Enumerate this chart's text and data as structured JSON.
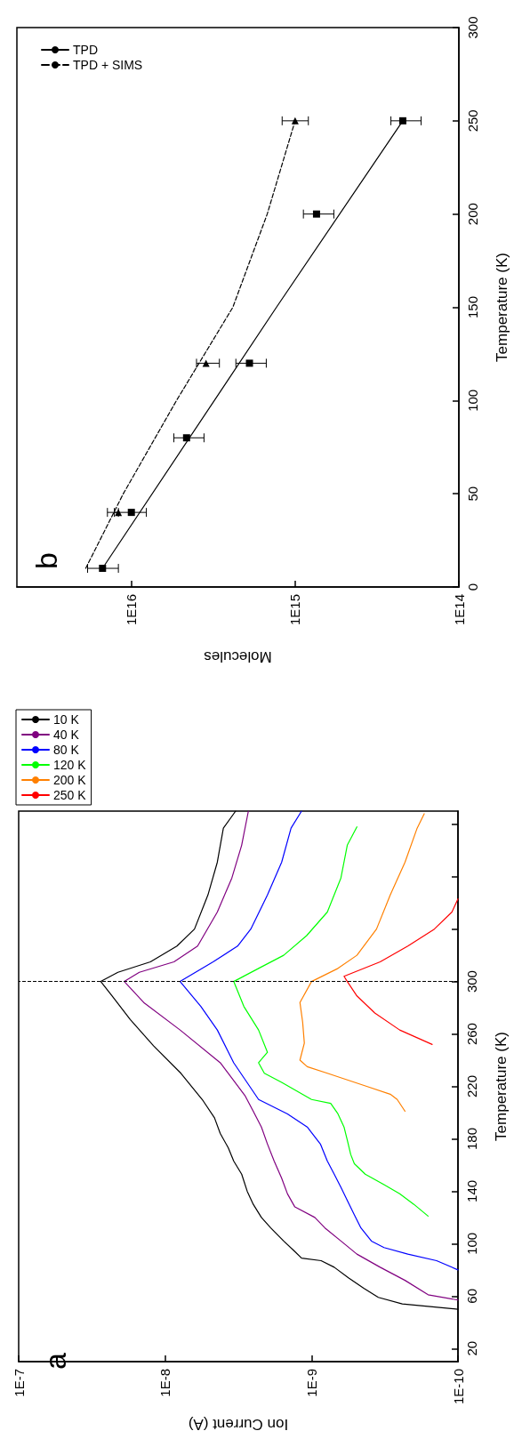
{
  "chart_data": [
    {
      "type": "line",
      "xlabel": "Ion Current (A)",
      "ylabel": "Temperature (K)",
      "annotations": [
        "a"
      ],
      "log": "x",
      "legend": "top left",
      "marker": "none",
      "line_style": "solid",
      "ylim": [
        10,
        430
      ],
      "yticks": [
        20,
        60,
        100,
        140,
        180,
        220,
        260,
        300,
        {
          "value": 340,
          "label": null
        },
        {
          "value": 380,
          "label": null
        },
        {
          "value": 420,
          "label": null
        }
      ],
      "xlim": [
        1e-07,
        1e-10
      ],
      "xticks": [
        {
          "value": 1e-07,
          "label": "1E-7"
        },
        {
          "value": 1e-08,
          "label": "1E-8"
        },
        {
          "value": 1e-09,
          "label": "1E-9"
        },
        {
          "value": 1e-10,
          "label": "1E-10"
        }
      ],
      "ref_lines": [
        {
          "axis": "y",
          "value": 300,
          "color": "#000000",
          "line_style": "dashed"
        }
      ],
      "series": [
        {
          "name": "10 K",
          "color": "#000000",
          "values": [
            50,
            54,
            59,
            66,
            74,
            82,
            87,
            89,
            94,
            102,
            112,
            120,
            130,
            140,
            153,
            163,
            173,
            184,
            196,
            209,
            230,
            251,
            271,
            289,
            300,
            307,
            315,
            327,
            340,
            366,
            391,
            417,
            430
          ],
          "x": [
            1e-10,
            2.4e-10,
            3.5e-10,
            4.4e-10,
            5.6e-10,
            7e-10,
            8.6e-10,
            1.17e-09,
            1.3e-09,
            1.55e-09,
            1.9e-09,
            2.2e-09,
            2.5e-09,
            2.75e-09,
            3e-09,
            3.4e-09,
            3.7e-09,
            4.2e-09,
            4.6e-09,
            5.5e-09,
            7.8e-09,
            1.2e-08,
            1.73e-08,
            2.3e-08,
            2.75e-08,
            2.1e-08,
            1.26e-08,
            8.3e-09,
            6.3e-09,
            5.1e-09,
            4.4e-09,
            4e-09,
            3.3e-09
          ]
        },
        {
          "name": "40 K",
          "color": "#800080",
          "values": [
            57,
            61,
            72,
            82,
            92,
            102,
            112,
            120,
            128,
            138,
            150,
            163,
            176,
            189,
            201,
            213,
            238,
            263,
            284,
            300,
            307,
            315,
            327,
            353,
            379,
            404,
            430
          ],
          "x": [
            1e-10,
            1.6e-10,
            2.3e-10,
            3.4e-10,
            4.9e-10,
            6.3e-10,
            8.1e-10,
            9.5e-10,
            1.3e-09,
            1.46e-09,
            1.6e-09,
            1.8e-09,
            2e-09,
            2.2e-09,
            2.5e-09,
            2.85e-09,
            4.2e-09,
            7.9e-09,
            1.4e-08,
            1.9e-08,
            1.5e-08,
            8.7e-09,
            6e-09,
            4.4e-09,
            3.5e-09,
            3e-09,
            2.7e-09
          ]
        },
        {
          "name": "80 K",
          "color": "#0000ff",
          "values": [
            80,
            87,
            92,
            97,
            102,
            112,
            122,
            133,
            143,
            153,
            163,
            176,
            189,
            199,
            210,
            238,
            263,
            281,
            300,
            315,
            327,
            340,
            366,
            391,
            417,
            430
          ],
          "x": [
            1e-10,
            1.4e-10,
            2.2e-10,
            3.2e-10,
            3.9e-10,
            4.6e-10,
            5.1e-10,
            5.7e-10,
            6.3e-10,
            7e-10,
            7.8e-10,
            8.7e-10,
            1.07e-09,
            1.46e-09,
            2.3e-09,
            3.4e-09,
            4.4e-09,
            5.7e-09,
            7.9e-09,
            4.7e-09,
            3.2e-09,
            2.6e-09,
            2e-09,
            1.6e-09,
            1.38e-09,
            1.17e-09
          ]
        },
        {
          "name": "120 K",
          "color": "#00ff00",
          "values": [
            121,
            130,
            138,
            145,
            153,
            161,
            168,
            179,
            189,
            199,
            207,
            210,
            223,
            230,
            238,
            246,
            263,
            281,
            300,
            310,
            320,
            335,
            353,
            379,
            404,
            418
          ],
          "x": [
            1.6e-10,
            2e-10,
            2.5e-10,
            3.2e-10,
            4.3e-10,
            5.1e-10,
            5.4e-10,
            5.7e-10,
            6e-10,
            6.6e-10,
            7.4e-10,
            1e-09,
            1.6e-09,
            2.1e-09,
            2.3e-09,
            2e-09,
            2.3e-09,
            2.9e-09,
            3.4e-09,
            2.3e-09,
            1.55e-09,
            1.08e-09,
            7.8e-10,
            6.3e-10,
            5.7e-10,
            4.9e-10
          ]
        },
        {
          "name": "200 K",
          "color": "#ff8000",
          "values": [
            201,
            210,
            214,
            220,
            230,
            235,
            240,
            253,
            269,
            284,
            300,
            310,
            320,
            340,
            366,
            391,
            417,
            428
          ],
          "x": [
            2.3e-10,
            2.6e-10,
            2.9e-10,
            4.2e-10,
            7.8e-10,
            1.07e-09,
            1.2e-09,
            1.12e-09,
            1.15e-09,
            1.2e-09,
            1e-09,
            6.6e-10,
            4.9e-10,
            3.6e-10,
            2.9e-10,
            2.3e-10,
            1.9e-10,
            1.7e-10
          ]
        },
        {
          "name": "250 K",
          "color": "#ff0000",
          "values": [
            252,
            263,
            276,
            289,
            300,
            304,
            315,
            327,
            340,
            353,
            363
          ],
          "x": [
            1.5e-10,
            2.5e-10,
            3.7e-10,
            4.9e-10,
            5.7e-10,
            6e-10,
            3.4e-10,
            2.2e-10,
            1.45e-10,
            1.1e-10,
            1e-10
          ]
        }
      ]
    },
    {
      "type": "scatter",
      "xlabel": "Molecules",
      "ylabel": "Temperature (K)",
      "annotations": [
        "b"
      ],
      "log": "x",
      "legend": "top left",
      "ylim": [
        0,
        300
      ],
      "yticks": [
        0,
        50,
        100,
        150,
        200,
        250,
        300
      ],
      "xlim": [
        5e+16,
        100000000000000.0
      ],
      "xticks": [
        {
          "value": 1e+16,
          "label": "1E16"
        },
        {
          "value": 1000000000000000.0,
          "label": "1E15"
        },
        {
          "value": 100000000000000.0,
          "label": "1E14"
        }
      ],
      "series": [
        {
          "color": "#000000",
          "marker": "square",
          "values": [
            10,
            40,
            80,
            120,
            200,
            250
          ],
          "x": [
            1.5e+16,
            1e+16,
            4600000000000000.0,
            1900000000000000.0,
            740000000000000.0,
            220000000000000.0
          ],
          "xerrors": [
            [
              1.2e+16,
              1.85e+16
            ],
            [
              8100000000000000.0,
              1.27e+16
            ],
            [
              3600000000000000.0,
              5500000000000000.0
            ],
            [
              1500000000000000.0,
              2300000000000000.0
            ],
            [
              580000000000000.0,
              890000000000000.0
            ],
            [
              170000000000000.0,
              260000000000000.0
            ]
          ]
        },
        {
          "color": "#000000",
          "marker": "triangle",
          "values": [
            40,
            120,
            250
          ],
          "x": [
            1.2e+16,
            3500000000000000.0,
            1000000000000000.0
          ],
          "xerrors": [
            [
              1.2e+16,
              1.4e+16
            ],
            [
              2900000000000000.0,
              4000000000000000.0
            ],
            [
              830000000000000.0,
              1200000000000000.0
            ]
          ]
        },
        {
          "type": "line",
          "name": "TPD",
          "color": "#000000",
          "marker": "none",
          "line_style": "solid",
          "values": [
            10,
            150,
            250
          ],
          "x": [
            1.5e+16,
            1300000000000000.0,
            220000000000000.0
          ]
        },
        {
          "type": "line",
          "name": "TPD + SIMS",
          "color": "#000000",
          "marker": "none",
          "line_style": "dashed",
          "values": [
            10,
            50,
            100,
            150,
            200,
            250
          ],
          "x": [
            1.9e+16,
            1.12e+16,
            5300000000000000.0,
            2400000000000000.0,
            1480000000000000.0,
            1000000000000000.0
          ]
        }
      ]
    }
  ]
}
